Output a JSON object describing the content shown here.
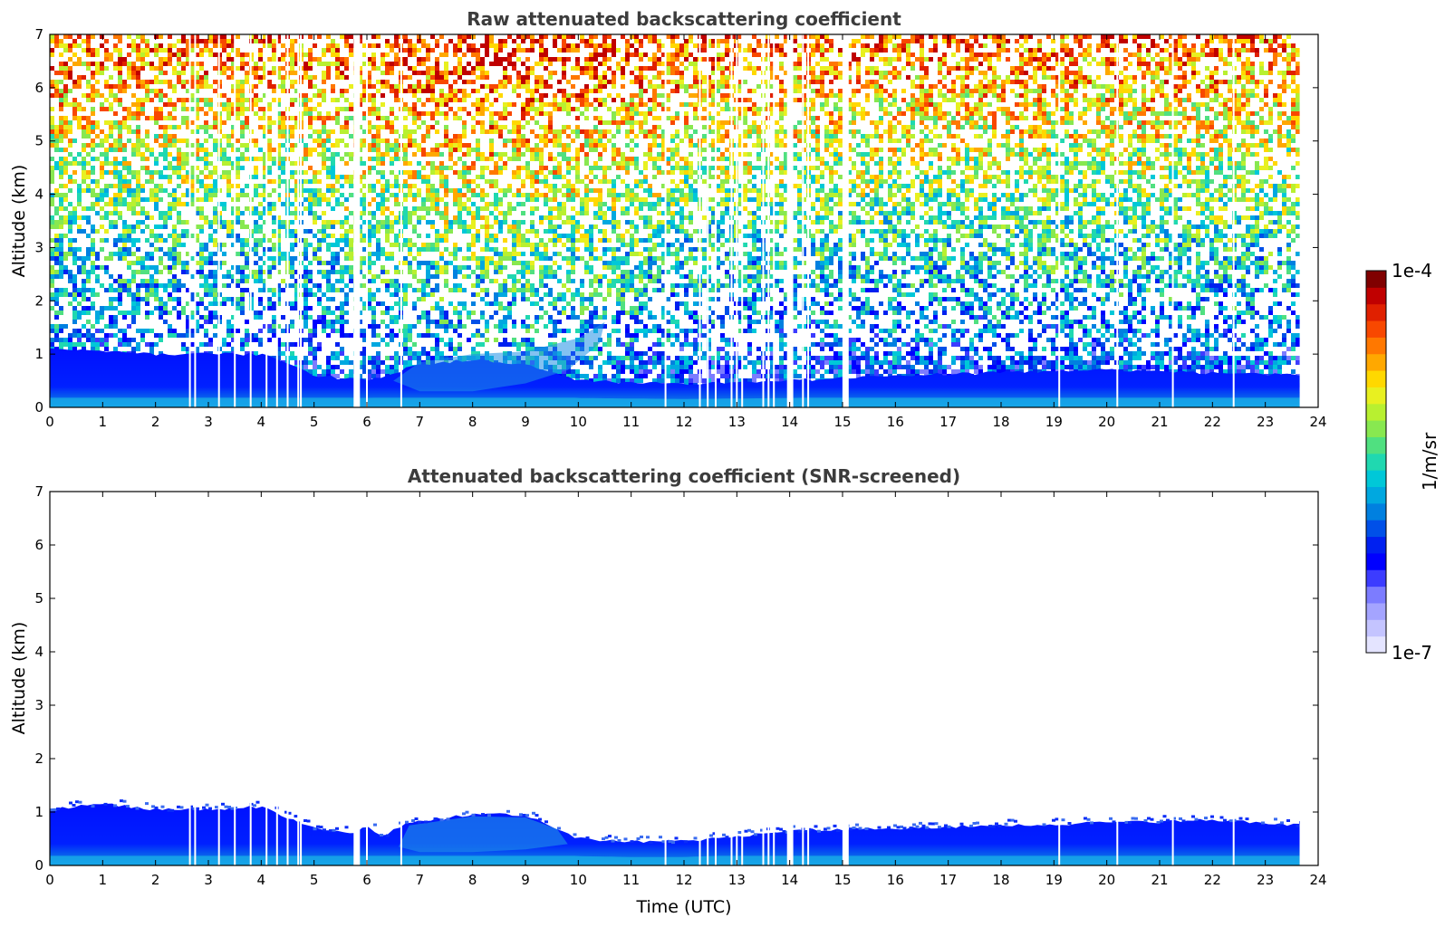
{
  "chart_data": [
    {
      "type": "heatmap",
      "title": "Raw attenuated backscattering coefficient",
      "xlabel": "",
      "ylabel": "Altitude (km)",
      "xlim": [
        0,
        24
      ],
      "ylim": [
        0,
        7
      ],
      "xticks": [
        "0",
        "1",
        "2",
        "3",
        "4",
        "5",
        "6",
        "7",
        "8",
        "9",
        "10",
        "11",
        "12",
        "13",
        "14",
        "15",
        "16",
        "17",
        "18",
        "19",
        "20",
        "21",
        "22",
        "23",
        "24"
      ],
      "yticks": [
        "0",
        "1",
        "2",
        "3",
        "4",
        "5",
        "6",
        "7"
      ],
      "data_end_x": 23.65,
      "boundary_layer_top_km": [
        {
          "x": 0,
          "y": 1.1
        },
        {
          "x": 2,
          "y": 1.0
        },
        {
          "x": 4,
          "y": 1.0
        },
        {
          "x": 5,
          "y": 0.6
        },
        {
          "x": 6,
          "y": 0.5
        },
        {
          "x": 7,
          "y": 0.8
        },
        {
          "x": 8,
          "y": 0.9
        },
        {
          "x": 9,
          "y": 0.8
        },
        {
          "x": 10,
          "y": 0.5
        },
        {
          "x": 12,
          "y": 0.45
        },
        {
          "x": 14,
          "y": 0.5
        },
        {
          "x": 16,
          "y": 0.6
        },
        {
          "x": 20,
          "y": 0.7
        },
        {
          "x": 23.65,
          "y": 0.6
        }
      ],
      "gap_times_utc": [
        2.65,
        2.75,
        3.2,
        3.5,
        3.8,
        4.1,
        4.3,
        4.5,
        4.7,
        4.75,
        5.8,
        5.85,
        6.0,
        6.65,
        11.65,
        12.3,
        12.45,
        12.6,
        12.9,
        13.0,
        13.1,
        13.5,
        13.6,
        13.7,
        14.0,
        14.05,
        14.25,
        14.35,
        15.05,
        15.1,
        19.1,
        20.2,
        21.25,
        22.4
      ]
    },
    {
      "type": "heatmap",
      "title": "Attenuated backscattering coefficient (SNR-screened)",
      "xlabel": "Time (UTC)",
      "ylabel": "Altitude (km)",
      "xlim": [
        0,
        24
      ],
      "ylim": [
        0,
        7
      ],
      "xticks": [
        "0",
        "1",
        "2",
        "3",
        "4",
        "5",
        "6",
        "7",
        "8",
        "9",
        "10",
        "11",
        "12",
        "13",
        "14",
        "15",
        "16",
        "17",
        "18",
        "19",
        "20",
        "21",
        "22",
        "23",
        "24"
      ],
      "yticks": [
        "0",
        "1",
        "2",
        "3",
        "4",
        "5",
        "6",
        "7"
      ],
      "data_end_x": 23.65,
      "screened_layer_top_km": [
        {
          "x": 0,
          "y": 1.05
        },
        {
          "x": 1,
          "y": 1.15
        },
        {
          "x": 2,
          "y": 1.05
        },
        {
          "x": 3,
          "y": 1.05
        },
        {
          "x": 4,
          "y": 1.1
        },
        {
          "x": 4.6,
          "y": 0.85
        },
        {
          "x": 5,
          "y": 0.7
        },
        {
          "x": 5.8,
          "y": 0.6
        },
        {
          "x": 6,
          "y": 0.75
        },
        {
          "x": 6.3,
          "y": 0.55
        },
        {
          "x": 6.8,
          "y": 0.8
        },
        {
          "x": 8,
          "y": 0.95
        },
        {
          "x": 9,
          "y": 0.95
        },
        {
          "x": 9.6,
          "y": 0.7
        },
        {
          "x": 10,
          "y": 0.5
        },
        {
          "x": 11,
          "y": 0.45
        },
        {
          "x": 12,
          "y": 0.45
        },
        {
          "x": 13,
          "y": 0.55
        },
        {
          "x": 14,
          "y": 0.65
        },
        {
          "x": 16,
          "y": 0.7
        },
        {
          "x": 18,
          "y": 0.75
        },
        {
          "x": 20,
          "y": 0.8
        },
        {
          "x": 22,
          "y": 0.85
        },
        {
          "x": 23.65,
          "y": 0.75
        }
      ]
    }
  ],
  "colorbar": {
    "label": "1/m/sr",
    "max_label": "1e-4",
    "min_label": "1e-7",
    "colors": [
      "#e4e4ff",
      "#c4c4ff",
      "#a4a4ff",
      "#7c7cff",
      "#3c3cff",
      "#0000ff",
      "#0020f0",
      "#0050e8",
      "#0080e0",
      "#00a8e0",
      "#00c8d8",
      "#20d8b0",
      "#50e080",
      "#88e850",
      "#b8f030",
      "#e8f020",
      "#ffd800",
      "#ffa800",
      "#ff7800",
      "#f84800",
      "#e02000",
      "#c00000",
      "#800000"
    ]
  }
}
